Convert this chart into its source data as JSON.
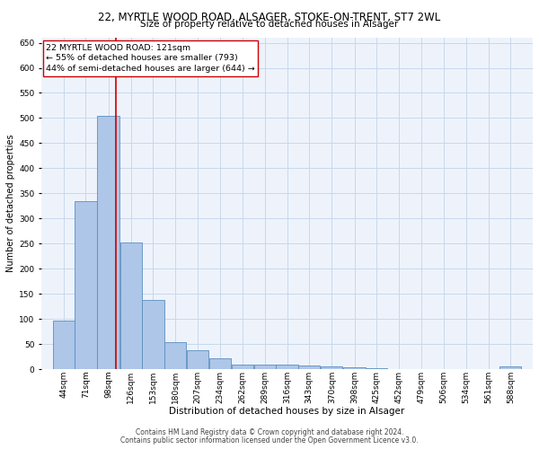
{
  "title": "22, MYRTLE WOOD ROAD, ALSAGER, STOKE-ON-TRENT, ST7 2WL",
  "subtitle": "Size of property relative to detached houses in Alsager",
  "xlabel": "Distribution of detached houses by size in Alsager",
  "ylabel": "Number of detached properties",
  "footer_line1": "Contains HM Land Registry data © Crown copyright and database right 2024.",
  "footer_line2": "Contains public sector information licensed under the Open Government Licence v3.0.",
  "property_line": "22 MYRTLE WOOD ROAD: 121sqm",
  "annotation_line1": "← 55% of detached houses are smaller (793)",
  "annotation_line2": "44% of semi-detached houses are larger (644) →",
  "bar_color": "#aec6e8",
  "bar_edge_color": "#5a8fc0",
  "vline_color": "#cc0000",
  "grid_color": "#c8d8ec",
  "background_color": "#eef3fb",
  "bin_labels": [
    "44sqm",
    "71sqm",
    "98sqm",
    "126sqm",
    "153sqm",
    "180sqm",
    "207sqm",
    "234sqm",
    "262sqm",
    "289sqm",
    "316sqm",
    "343sqm",
    "370sqm",
    "398sqm",
    "425sqm",
    "452sqm",
    "479sqm",
    "506sqm",
    "534sqm",
    "561sqm",
    "588sqm"
  ],
  "bin_edges": [
    44,
    71,
    98,
    126,
    153,
    180,
    207,
    234,
    262,
    289,
    316,
    343,
    370,
    398,
    425,
    452,
    479,
    506,
    534,
    561,
    588,
    615
  ],
  "bar_values": [
    97,
    335,
    505,
    253,
    138,
    53,
    37,
    22,
    10,
    10,
    10,
    7,
    5,
    3,
    2,
    1,
    1,
    0,
    0,
    0,
    5
  ],
  "ylim": [
    0,
    660
  ],
  "yticks": [
    0,
    50,
    100,
    150,
    200,
    250,
    300,
    350,
    400,
    450,
    500,
    550,
    600,
    650
  ],
  "vline_x": 121,
  "title_fontsize": 8.5,
  "subtitle_fontsize": 7.5,
  "xlabel_fontsize": 7.5,
  "ylabel_fontsize": 7.0,
  "tick_fontsize": 6.5,
  "footer_fontsize": 5.5,
  "annotation_fontsize": 6.8
}
